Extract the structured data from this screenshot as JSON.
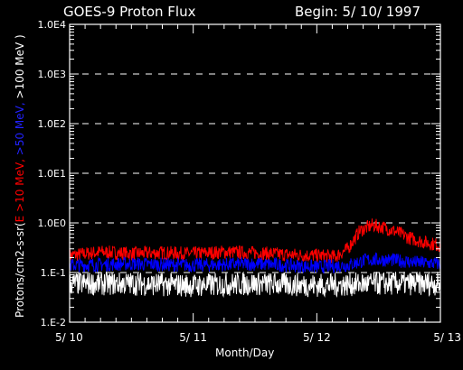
{
  "header": {
    "title": "GOES-9 Proton Flux",
    "begin": "Begin: 5/ 10/ 1997"
  },
  "chart_data": {
    "type": "line",
    "ylabel_parts": [
      {
        "text": "Protons/cm2-s-sr(",
        "color": "#ffffff"
      },
      {
        "text": "E >10 MeV, ",
        "color": "#ff0000"
      },
      {
        "text": ">50 MeV, ",
        "color": "#0000ff"
      },
      {
        "text": ">100 MeV )",
        "color": "#ffffff"
      }
    ],
    "xlabel": "Month/Day",
    "x_ticks": [
      "5/ 10",
      "5/ 11",
      "5/ 12",
      "5/ 13"
    ],
    "x_range_days": [
      0,
      3
    ],
    "y_scale": "log",
    "y_ticks": [
      "1.0E4",
      "1.0E3",
      "1.0E2",
      "1.0E1",
      "1.0E0",
      "1.E-1",
      "1.E-2"
    ],
    "ylim": [
      0.01,
      10000
    ],
    "grid": "dashed horizontal at decades",
    "series": [
      {
        "name": "E >10 MeV",
        "color": "#ff0000",
        "x": [
          0,
          0.25,
          0.5,
          0.75,
          1.0,
          1.25,
          1.5,
          1.75,
          2.0,
          2.15,
          2.25,
          2.35,
          2.45,
          2.55,
          2.65,
          2.75,
          2.85,
          3.0
        ],
        "y": [
          0.22,
          0.26,
          0.24,
          0.25,
          0.24,
          0.26,
          0.25,
          0.23,
          0.22,
          0.21,
          0.3,
          0.7,
          0.9,
          0.8,
          0.65,
          0.5,
          0.42,
          0.35
        ]
      },
      {
        "name": ">50 MeV",
        "color": "#0000ff",
        "x": [
          0,
          0.5,
          1.0,
          1.5,
          2.0,
          2.25,
          2.4,
          2.6,
          2.8,
          3.0
        ],
        "y": [
          0.14,
          0.15,
          0.14,
          0.15,
          0.13,
          0.14,
          0.18,
          0.18,
          0.16,
          0.15
        ]
      },
      {
        "name": ">100 MeV",
        "color": "#ffffff",
        "x": [
          0,
          0.5,
          1.0,
          1.5,
          2.0,
          2.5,
          3.0
        ],
        "y": [
          0.06,
          0.06,
          0.055,
          0.06,
          0.055,
          0.06,
          0.06
        ]
      }
    ]
  }
}
